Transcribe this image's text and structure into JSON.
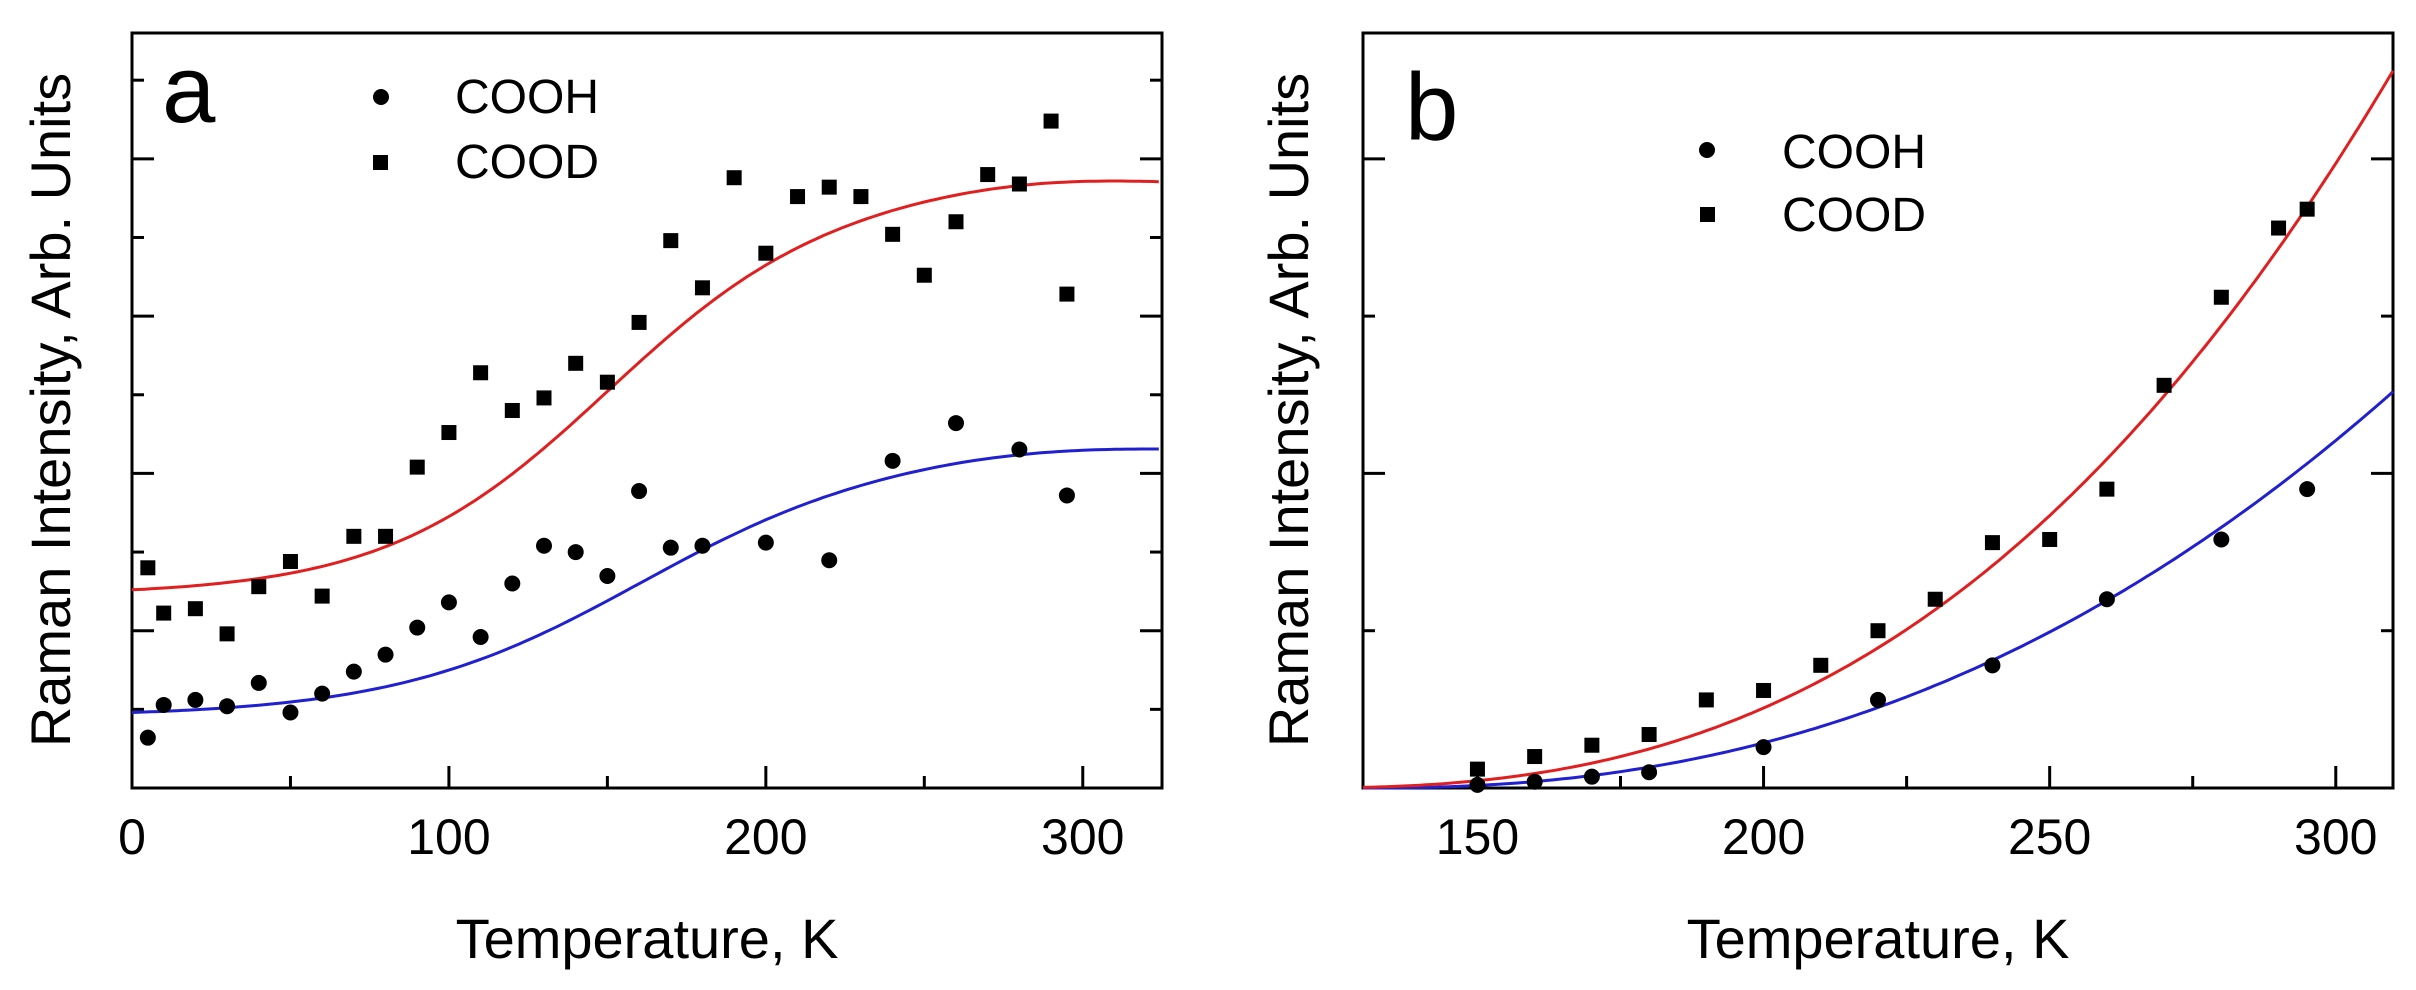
{
  "chart_data": [
    {
      "type": "scatter",
      "panel_label": "a",
      "title": "",
      "xlabel": "Temperature, K",
      "ylabel": "Raman Intensity, Arb. Units",
      "xlim": [
        0,
        325
      ],
      "ylim": [
        0,
        1.2
      ],
      "x_ticks": [
        0,
        100,
        200,
        300
      ],
      "x_tick_labels": [
        "0",
        "100",
        "200",
        "300"
      ],
      "y_major_ticks": [
        0,
        0.25,
        0.5,
        0.75,
        1.0
      ],
      "y_minor_ticks": [
        0.125,
        0.375,
        0.625,
        0.875,
        1.125
      ],
      "grid": false,
      "legend_position": "top-center",
      "series": [
        {
          "name": "COOH",
          "marker": "circle",
          "color": "#000000",
          "x": [
            5,
            10,
            20,
            30,
            40,
            50,
            60,
            70,
            80,
            90,
            100,
            110,
            120,
            130,
            140,
            150,
            160,
            170,
            180,
            200,
            220,
            240,
            260,
            280,
            295
          ],
          "y": [
            0.08,
            0.132,
            0.14,
            0.13,
            0.167,
            0.12,
            0.15,
            0.185,
            0.212,
            0.255,
            0.295,
            0.24,
            0.325,
            0.385,
            0.375,
            0.337,
            0.472,
            0.382,
            0.385,
            0.39,
            0.362,
            0.52,
            0.58,
            0.538,
            0.465
          ]
        },
        {
          "name": "COOD",
          "marker": "square",
          "color": "#000000",
          "x": [
            5,
            10,
            20,
            30,
            40,
            50,
            60,
            70,
            80,
            90,
            100,
            110,
            120,
            130,
            140,
            150,
            160,
            170,
            180,
            190,
            200,
            210,
            220,
            230,
            240,
            250,
            260,
            270,
            280,
            290,
            295
          ],
          "y": [
            0.35,
            0.278,
            0.285,
            0.245,
            0.32,
            0.36,
            0.305,
            0.4,
            0.4,
            0.51,
            0.565,
            0.66,
            0.6,
            0.62,
            0.675,
            0.645,
            0.74,
            0.87,
            0.795,
            0.97,
            0.85,
            0.94,
            0.955,
            0.94,
            0.88,
            0.815,
            0.9,
            0.975,
            0.96,
            1.06,
            0.785
          ]
        }
      ],
      "fits": [
        {
          "name": "COOH fit",
          "color": "#2020d0",
          "base": 0.12,
          "amplitude": 0.41,
          "center": 160,
          "width": 155
        },
        {
          "name": "COOD fit",
          "color": "#e02020",
          "base": 0.315,
          "amplitude": 0.635,
          "center": 150,
          "width": 140
        }
      ]
    },
    {
      "type": "scatter",
      "panel_label": "b",
      "title": "",
      "xlabel": "Temperature, K",
      "ylabel": "Raman Intensity, Arb. Units",
      "xlim": [
        130,
        310
      ],
      "ylim": [
        0,
        1.2
      ],
      "x_ticks": [
        150,
        200,
        250,
        300
      ],
      "x_tick_labels": [
        "150",
        "200",
        "250",
        "300"
      ],
      "y_major_ticks": [
        0,
        0.5,
        1.0
      ],
      "y_minor_ticks": [
        0.25,
        0.75
      ],
      "grid": false,
      "legend_position": "top-center",
      "series": [
        {
          "name": "COOH",
          "marker": "circle",
          "color": "#000000",
          "x": [
            150,
            160,
            170,
            180,
            200,
            220,
            240,
            260,
            280,
            295
          ],
          "y": [
            0.005,
            0.01,
            0.018,
            0.025,
            0.065,
            0.14,
            0.195,
            0.3,
            0.395,
            0.475
          ]
        },
        {
          "name": "COOD",
          "marker": "square",
          "color": "#000000",
          "x": [
            150,
            160,
            170,
            180,
            190,
            200,
            210,
            220,
            230,
            240,
            250,
            260,
            270,
            280,
            290,
            295
          ],
          "y": [
            0.03,
            0.05,
            0.068,
            0.085,
            0.14,
            0.155,
            0.195,
            0.25,
            0.3,
            0.39,
            0.395,
            0.475,
            0.64,
            0.78,
            0.89,
            0.92
          ]
        }
      ],
      "fits": [
        {
          "name": "COOH fit",
          "color": "#2020d0",
          "x0": 130,
          "x1": 310,
          "y_end": 0.63,
          "power": 2.3
        },
        {
          "name": "COOD fit",
          "color": "#e02020",
          "x0": 117,
          "x1": 310,
          "y_end": 1.14,
          "power": 2.6
        }
      ]
    }
  ]
}
